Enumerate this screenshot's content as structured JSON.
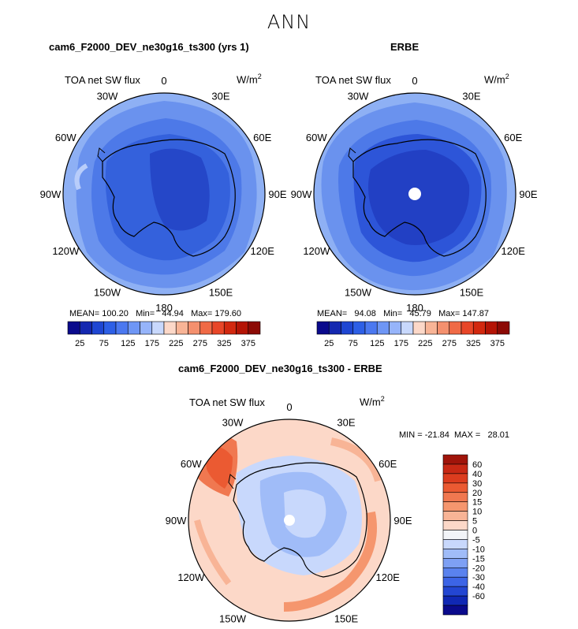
{
  "figure": {
    "title": "ANN"
  },
  "panels": [
    {
      "title": "cam6_F2000_DEV_ne30g16_ts300 (yrs 1)",
      "variable": "TOA net SW flux",
      "units_base": "W/m",
      "units_sup": "2",
      "stats_text": "MEAN= 100.20   Min=   44.94   Max= 179.60",
      "mean": 100.2,
      "min": 44.94,
      "max": 179.6
    },
    {
      "title": "ERBE",
      "variable": "TOA net SW flux",
      "units_base": "W/m",
      "units_sup": "2",
      "stats_text": "MEAN=   94.08   Min=   45.79   Max= 147.87",
      "mean": 94.08,
      "min": 45.79,
      "max": 147.87
    },
    {
      "title": "cam6_F2000_DEV_ne30g16_ts300 - ERBE",
      "variable": "TOA net SW flux",
      "units_base": "W/m",
      "units_sup": "2",
      "stats_text": "MIN = -21.84  MAX =   28.01",
      "min": -21.84,
      "max": 28.01
    }
  ],
  "longitude_labels": [
    "0",
    "30E",
    "60E",
    "90E",
    "120E",
    "150E",
    "180",
    "150W",
    "120W",
    "90W",
    "60W",
    "30W"
  ],
  "colorbar_abs": {
    "tick_labels": [
      "25",
      "75",
      "125",
      "175",
      "225",
      "275",
      "325",
      "375"
    ],
    "colors": [
      "#0a0a8c",
      "#1428b0",
      "#1e46d2",
      "#2d5fe6",
      "#4b78f0",
      "#6e96f5",
      "#96b4fa",
      "#c8d8fc",
      "#fcd8c8",
      "#f8b496",
      "#f4906e",
      "#f06a46",
      "#e84628",
      "#d2280f",
      "#b41405",
      "#8c0a05"
    ]
  },
  "colorbar_diff": {
    "tick_labels": [
      "60",
      "40",
      "30",
      "20",
      "15",
      "10",
      "5",
      "0",
      "-5",
      "-10",
      "-15",
      "-20",
      "-30",
      "-40",
      "-60"
    ],
    "colors": [
      "#a0140a",
      "#c82814",
      "#dc3c1e",
      "#eb5a32",
      "#f07850",
      "#f5966e",
      "#f8b496",
      "#fcd8c8",
      "#f2f4f8",
      "#c8d8fc",
      "#a0bcf8",
      "#7ea0f4",
      "#5a82ee",
      "#3c64e6",
      "#2346d2",
      "#1028b4",
      "#0a0a8c"
    ]
  }
}
